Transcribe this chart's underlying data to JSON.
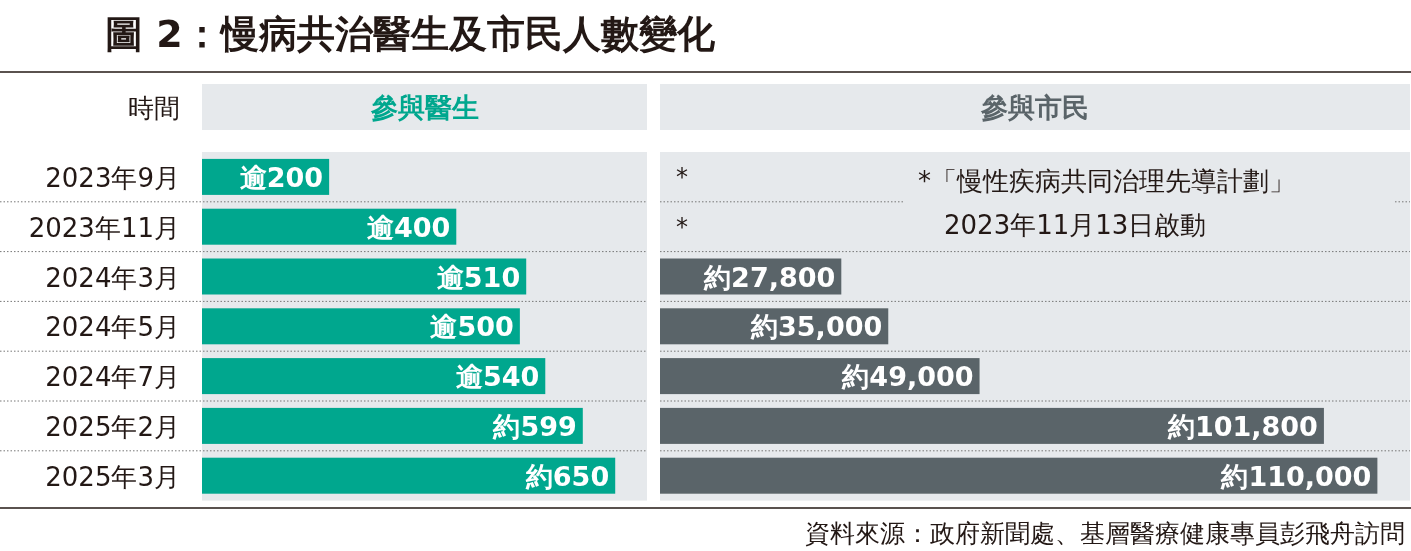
{
  "chart_data": [
    {
      "type": "bar",
      "orientation": "horizontal",
      "title": "圖 2：慢病共治醫生及市民人數變化",
      "subtitle": "參與醫生",
      "ylabel": "時間",
      "categories": [
        "2023年9月",
        "2023年11月",
        "2024年3月",
        "2024年5月",
        "2024年7月",
        "2025年2月",
        "2025年3月"
      ],
      "values": [
        200,
        400,
        510,
        500,
        540,
        599,
        650
      ],
      "value_labels": [
        "逾200",
        "逾400",
        "逾510",
        "逾500",
        "逾540",
        "約599",
        "約650"
      ],
      "color": "#00a78e",
      "xlim": [
        0,
        700
      ],
      "grid": "y"
    },
    {
      "type": "bar",
      "orientation": "horizontal",
      "title": "參與市民",
      "categories": [
        null,
        null,
        null,
        null,
        null,
        null,
        null
      ],
      "values": [
        null,
        null,
        27800,
        35000,
        49000,
        101800,
        110000
      ],
      "value_labels": [
        "*",
        "*",
        "約27,800",
        "約35,000",
        "約49,000",
        "約101,800",
        "約110,000"
      ],
      "color": "#5a6469",
      "xlim": [
        0,
        115000
      ],
      "grid": "y",
      "annotations": [
        "*「慢性疾病共同治理先導計劃」2023年11月13日啟動",
        "資料來源：政府新聞處、基層醫療健康專員彭飛舟訪問"
      ]
    }
  ]
}
